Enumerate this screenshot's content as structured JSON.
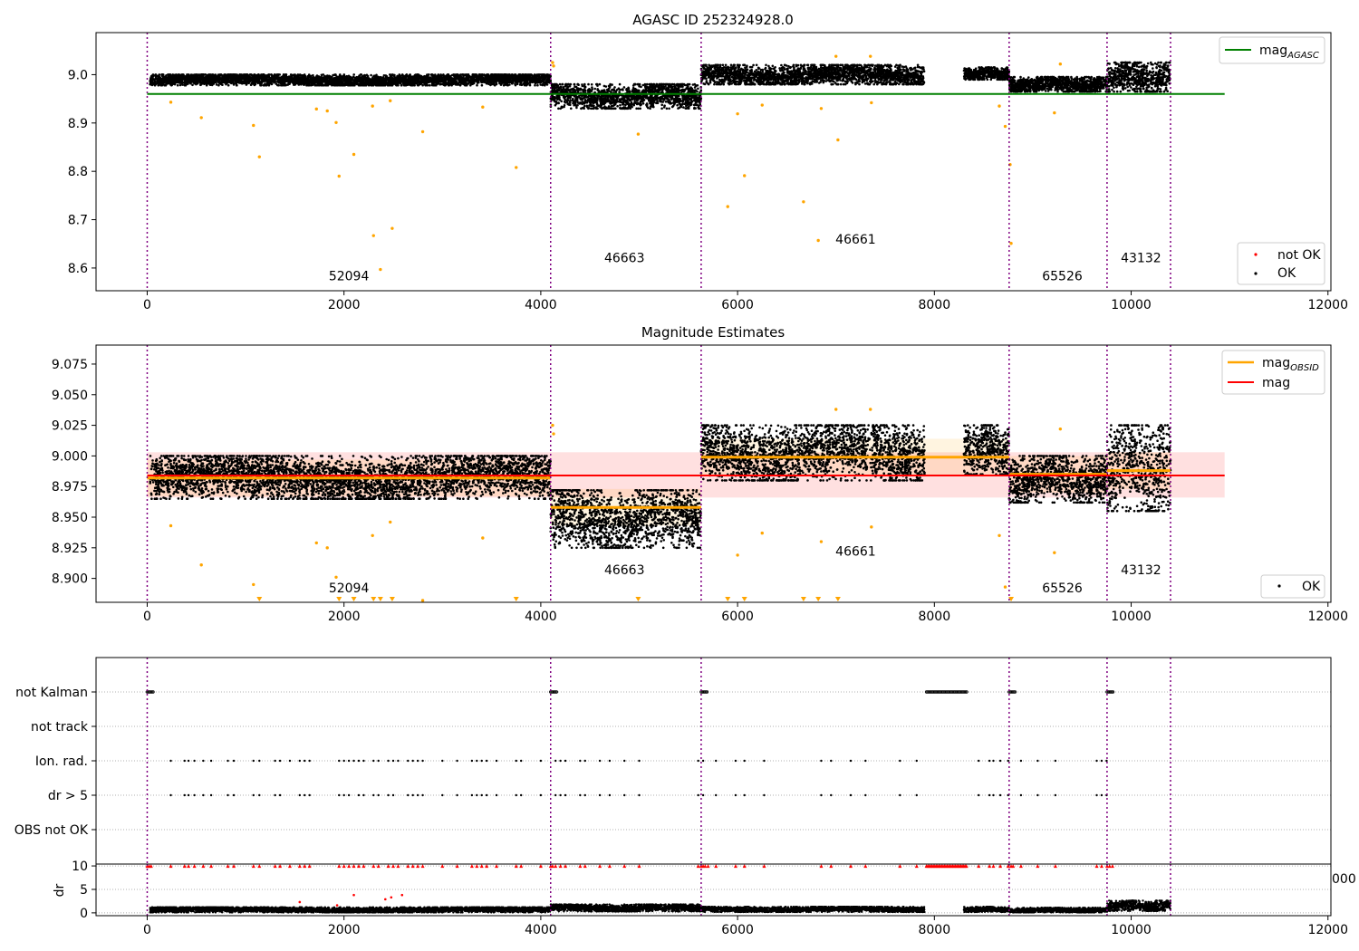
{
  "chart_data": [
    {
      "type": "scatter",
      "title": "AGASC ID 252324928.0",
      "xlim": [
        -520,
        12030
      ],
      "ylim": [
        8.553,
        9.087
      ],
      "xticks": [
        "0",
        "2000",
        "4000",
        "6000",
        "8000",
        "10000",
        "12000"
      ],
      "yticks": [
        "8.6",
        "8.7",
        "8.8",
        "8.9",
        "9.0"
      ],
      "hline": {
        "label": "mag",
        "label_sub": "AGASC",
        "value": 8.96,
        "x": [
          0,
          10950
        ],
        "color": "#008000"
      },
      "vlines": [
        0,
        4100,
        5630,
        8760,
        9755,
        10400
      ],
      "obsid_labels": [
        {
          "text": "52094",
          "x": 2050,
          "y": 8.575
        },
        {
          "text": "46663",
          "x": 4850,
          "y": 8.612
        },
        {
          "text": "46661",
          "x": 7200,
          "y": 8.65
        },
        {
          "text": "65526",
          "x": 9300,
          "y": 8.575
        },
        {
          "text": "43132",
          "x": 10100,
          "y": 8.612
        }
      ],
      "legend_top": {
        "entries": [
          {
            "label": "mag",
            "label_sub": "AGASC",
            "color": "#008000"
          }
        ],
        "loc": "upper right"
      },
      "legend_bottom": {
        "entries": [
          {
            "label": "not OK",
            "color": "#ff0000"
          },
          {
            "label": "OK",
            "color": "#000000"
          }
        ],
        "loc": "lower right"
      },
      "segments": [
        {
          "x": [
            30,
            4100
          ],
          "y": [
            8.978,
            9.0
          ]
        },
        {
          "x": [
            4100,
            5630
          ],
          "y": [
            8.93,
            8.98
          ]
        },
        {
          "x": [
            5630,
            7900
          ],
          "y": [
            8.98,
            9.02
          ]
        },
        {
          "x": [
            8300,
            8760
          ],
          "y": [
            8.99,
            9.015
          ]
        },
        {
          "x": [
            8760,
            9755
          ],
          "y": [
            8.965,
            8.995
          ]
        },
        {
          "x": [
            9755,
            10400
          ],
          "y": [
            8.965,
            9.025
          ]
        }
      ],
      "outliers": [
        {
          "x": 240,
          "y": 8.943
        },
        {
          "x": 550,
          "y": 8.911
        },
        {
          "x": 1080,
          "y": 8.895
        },
        {
          "x": 1140,
          "y": 8.83
        },
        {
          "x": 1720,
          "y": 8.929
        },
        {
          "x": 1830,
          "y": 8.925
        },
        {
          "x": 1920,
          "y": 8.901
        },
        {
          "x": 1950,
          "y": 8.79
        },
        {
          "x": 2100,
          "y": 8.835
        },
        {
          "x": 2290,
          "y": 8.935
        },
        {
          "x": 2300,
          "y": 8.667
        },
        {
          "x": 2370,
          "y": 8.597
        },
        {
          "x": 2470,
          "y": 8.946
        },
        {
          "x": 2490,
          "y": 8.682
        },
        {
          "x": 2800,
          "y": 8.882
        },
        {
          "x": 3410,
          "y": 8.933
        },
        {
          "x": 3750,
          "y": 8.808
        },
        {
          "x": 4990,
          "y": 8.877
        },
        {
          "x": 6000,
          "y": 8.919
        },
        {
          "x": 5900,
          "y": 8.727
        },
        {
          "x": 6070,
          "y": 8.791
        },
        {
          "x": 6250,
          "y": 8.937
        },
        {
          "x": 6670,
          "y": 8.737
        },
        {
          "x": 6820,
          "y": 8.657
        },
        {
          "x": 6850,
          "y": 8.93
        },
        {
          "x": 7020,
          "y": 8.865
        },
        {
          "x": 7360,
          "y": 8.942
        },
        {
          "x": 8720,
          "y": 8.893
        },
        {
          "x": 8770,
          "y": 8.814
        },
        {
          "x": 8780,
          "y": 8.651
        },
        {
          "x": 8660,
          "y": 8.935
        },
        {
          "x": 9220,
          "y": 8.921
        },
        {
          "x": 4120,
          "y": 9.025
        },
        {
          "x": 4130,
          "y": 9.018
        },
        {
          "x": 7000,
          "y": 9.038
        },
        {
          "x": 7350,
          "y": 9.038
        },
        {
          "x": 9280,
          "y": 9.022
        }
      ]
    },
    {
      "type": "scatter",
      "title": "Magnitude Estimates",
      "xlim": [
        -520,
        12030
      ],
      "ylim": [
        8.8805,
        9.0905
      ],
      "xticks": [
        "0",
        "2000",
        "4000",
        "6000",
        "8000",
        "10000",
        "12000"
      ],
      "yticks": [
        "8.900",
        "8.925",
        "8.950",
        "8.975",
        "9.000",
        "9.025",
        "9.050",
        "9.075"
      ],
      "mag_line": {
        "label": "mag",
        "value": 8.984,
        "band": [
          8.966,
          9.003
        ],
        "x": [
          0,
          10950
        ],
        "color": "#ff0000"
      },
      "obsid_mags": [
        {
          "x": [
            0,
            4100
          ],
          "value": 8.982
        },
        {
          "x": [
            4100,
            5630
          ],
          "value": 8.958
        },
        {
          "x": [
            5630,
            8760
          ],
          "value": 8.999
        },
        {
          "x": [
            8760,
            9755
          ],
          "value": 8.985
        },
        {
          "x": [
            9755,
            10400
          ],
          "value": 8.988
        }
      ],
      "obsid_label": "mag",
      "obsid_label_sub": "OBSID",
      "obsid_color": "#ffa500",
      "vlines": [
        0,
        4100,
        5630,
        8760,
        9755,
        10400
      ],
      "obsid_labels": [
        {
          "text": "52094",
          "x": 2050,
          "y": 8.8885
        },
        {
          "text": "46663",
          "x": 4850,
          "y": 8.9035
        },
        {
          "text": "46661",
          "x": 7200,
          "y": 8.9185
        },
        {
          "text": "65526",
          "x": 9300,
          "y": 8.8885
        },
        {
          "text": "43132",
          "x": 10100,
          "y": 8.9035
        }
      ],
      "legend_top": {
        "entries": [
          {
            "label": "mag",
            "label_sub": "OBSID",
            "color": "#ffa500"
          },
          {
            "label": "mag",
            "color": "#ff0000"
          }
        ],
        "loc": "upper right"
      },
      "legend_bottom": {
        "entries": [
          {
            "label": "OK",
            "color": "#000000"
          }
        ],
        "loc": "lower right"
      },
      "segments": [
        {
          "x": [
            30,
            4100
          ],
          "y": [
            8.965,
            9.0
          ]
        },
        {
          "x": [
            4100,
            5630
          ],
          "y": [
            8.925,
            8.972
          ]
        },
        {
          "x": [
            5630,
            7900
          ],
          "y": [
            8.98,
            9.025
          ]
        },
        {
          "x": [
            8300,
            8760
          ],
          "y": [
            8.985,
            9.025
          ]
        },
        {
          "x": [
            8760,
            9755
          ],
          "y": [
            8.962,
            9.0
          ]
        },
        {
          "x": [
            9755,
            10400
          ],
          "y": [
            8.955,
            9.025
          ]
        }
      ],
      "triangles_x": [
        1140,
        1950,
        2100,
        2300,
        2370,
        2490,
        3750,
        4990,
        5900,
        6070,
        6670,
        6820,
        7020,
        8780
      ]
    },
    {
      "type": "scatter",
      "categories": [
        "not Kalman",
        "not track",
        "Ion. rad.",
        "dr > 5",
        "OBS not OK"
      ],
      "xlim": [
        -520,
        12030
      ],
      "vlines": [
        0,
        4100,
        5630,
        8760,
        9755,
        10400
      ],
      "not_kalman_runs": [
        [
          0,
          60
        ],
        [
          4100,
          4170
        ],
        [
          5630,
          5700
        ],
        [
          7920,
          8330
        ],
        [
          8760,
          8830
        ],
        [
          9755,
          9820
        ]
      ],
      "ion_rad_x": [
        240,
        380,
        420,
        480,
        570,
        650,
        820,
        880,
        1080,
        1140,
        1300,
        1350,
        1450,
        1550,
        1600,
        1650,
        1950,
        2000,
        2050,
        2100,
        2150,
        2200,
        2300,
        2350,
        2450,
        2500,
        2550,
        2650,
        2700,
        2750,
        2800,
        3000,
        3150,
        3300,
        3350,
        3400,
        3450,
        3550,
        3750,
        3800,
        4000,
        4150,
        4200,
        4250,
        4400,
        4450,
        4600,
        4700,
        4850,
        5000,
        5600,
        5650,
        5780,
        5980,
        6070,
        6270,
        6850,
        6950,
        7150,
        7300,
        7650,
        7820,
        8450,
        8560,
        8600,
        8670,
        8750,
        8880,
        9050,
        9230,
        9650,
        9700,
        9750
      ],
      "dr5_x": [
        240,
        380,
        420,
        480,
        570,
        650,
        820,
        880,
        1080,
        1140,
        1300,
        1350,
        1550,
        1600,
        1650,
        1950,
        2000,
        2050,
        2150,
        2200,
        2300,
        2350,
        2450,
        2500,
        2650,
        2700,
        2750,
        2800,
        3000,
        3150,
        3300,
        3350,
        3400,
        3450,
        3550,
        3750,
        3800,
        4000,
        4150,
        4200,
        4250,
        4400,
        4450,
        4600,
        4700,
        4850,
        5000,
        5600,
        5650,
        5780,
        5980,
        6070,
        6270,
        6850,
        6950,
        7150,
        7300,
        7650,
        7820,
        8450,
        8560,
        8600,
        8670,
        8750,
        8880,
        9050,
        9230,
        9650,
        9700,
        9750
      ]
    },
    {
      "type": "scatter",
      "ylabel": "dr",
      "xlim": [
        -520,
        12030
      ],
      "ylim": [
        -0.6,
        10.4
      ],
      "xticks": [
        "0",
        "2000",
        "4000",
        "6000",
        "8000",
        "10000",
        "12000"
      ],
      "yticks": [
        "0",
        "5",
        "10"
      ],
      "stray_tick": "000",
      "vlines": [
        0,
        4100,
        5630,
        8760,
        9755,
        10400
      ],
      "segments": [
        {
          "x": [
            30,
            4100
          ],
          "y": [
            0.1,
            1.2
          ]
        },
        {
          "x": [
            4100,
            5630
          ],
          "y": [
            0.3,
            1.8
          ]
        },
        {
          "x": [
            5630,
            7900
          ],
          "y": [
            0.2,
            1.3
          ]
        },
        {
          "x": [
            8300,
            8760
          ],
          "y": [
            0.2,
            1.3
          ]
        },
        {
          "x": [
            8760,
            9755
          ],
          "y": [
            0.1,
            1.1
          ]
        },
        {
          "x": [
            9755,
            10400
          ],
          "y": [
            0.4,
            2.6
          ]
        }
      ],
      "red_capped_x": [
        0,
        20,
        40,
        240,
        380,
        420,
        480,
        570,
        650,
        820,
        880,
        1080,
        1140,
        1300,
        1350,
        1450,
        1550,
        1600,
        1650,
        1950,
        2000,
        2050,
        2100,
        2150,
        2200,
        2300,
        2350,
        2450,
        2500,
        2550,
        2650,
        2700,
        2750,
        2800,
        3000,
        3150,
        3300,
        3350,
        3400,
        3450,
        3550,
        3750,
        3800,
        4000,
        4100,
        4120,
        4150,
        4200,
        4250,
        4400,
        4450,
        4600,
        4700,
        4850,
        5000,
        5600,
        5630,
        5650,
        5670,
        5700,
        5780,
        5980,
        6070,
        6270,
        6850,
        6950,
        7150,
        7300,
        7650,
        7820,
        8450,
        8560,
        8600,
        8670,
        8750,
        8780,
        8800,
        8880,
        9050,
        9230,
        9650,
        9700,
        9755,
        9780,
        9810
      ],
      "red_low": [
        {
          "x": 1550,
          "y": 2.3
        },
        {
          "x": 2100,
          "y": 3.8
        },
        {
          "x": 2420,
          "y": 2.9
        },
        {
          "x": 2480,
          "y": 3.3
        },
        {
          "x": 2590,
          "y": 3.8
        },
        {
          "x": 1930,
          "y": 1.6
        }
      ]
    }
  ]
}
